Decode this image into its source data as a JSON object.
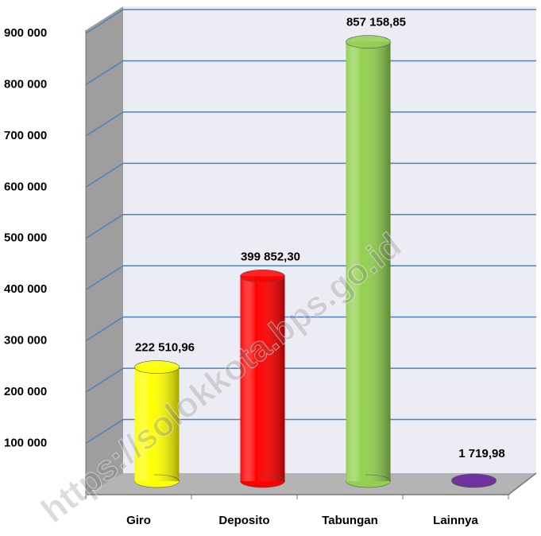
{
  "chart_data": {
    "type": "bar3d",
    "categories": [
      "Giro",
      "Deposito",
      "Tabungan",
      "Lainnya"
    ],
    "values": [
      222510.96,
      399852.3,
      857158.85,
      1719.98
    ],
    "value_labels": [
      "222 510,96",
      "399 852,30",
      "857 158,85",
      "1 719,98"
    ],
    "colors": [
      "#ffff00",
      "#ff0000",
      "#92d050",
      "#7030a0"
    ],
    "ylim": [
      0,
      900000
    ],
    "yticks": [
      {
        "value": 100000,
        "label": "100 000"
      },
      {
        "value": 200000,
        "label": "200 000"
      },
      {
        "value": 300000,
        "label": "300 000"
      },
      {
        "value": 400000,
        "label": "400 000"
      },
      {
        "value": 500000,
        "label": "500 000"
      },
      {
        "value": 600000,
        "label": "600 000"
      },
      {
        "value": 700000,
        "label": "700 000"
      },
      {
        "value": 800000,
        "label": "800 000"
      },
      {
        "value": 900000,
        "label": "900 000"
      }
    ],
    "grid": true,
    "watermark": "https://solokkota.bps.go.id"
  }
}
